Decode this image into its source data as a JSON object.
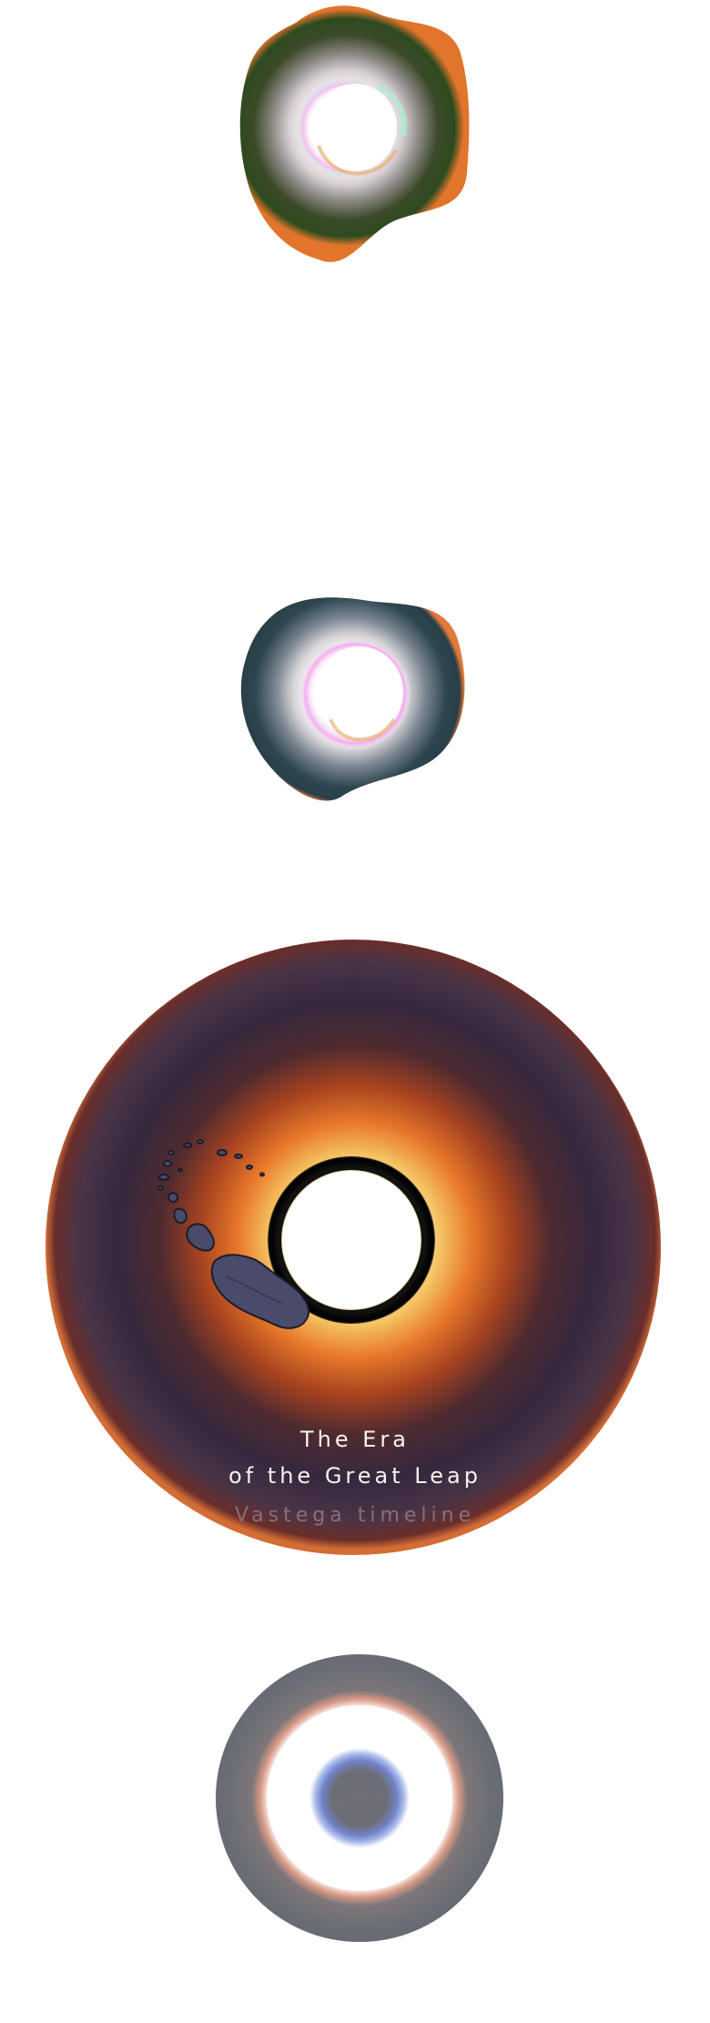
{
  "disc": {
    "title_line1": "The Era",
    "title_line2": "of the Great Leap",
    "subtitle": "Vastega timeline"
  },
  "palette": {
    "background": "#ffffff",
    "ember_orange": "#e8782a",
    "deep_plum": "#3a2a3f",
    "ice_teal": "#2f4b55",
    "slate_grey": "#6b6e76"
  }
}
